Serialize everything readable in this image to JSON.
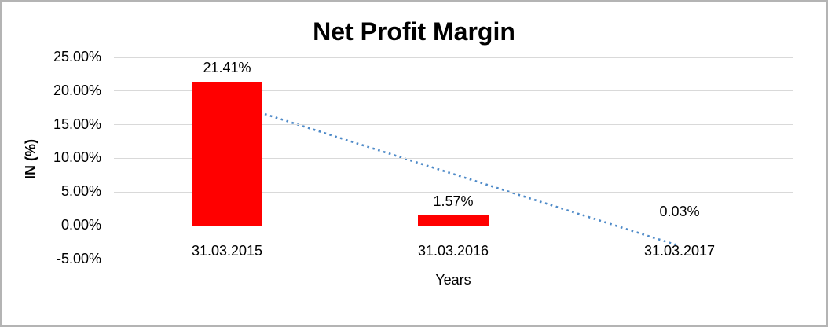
{
  "frame": {
    "background": "#FFFFFF",
    "border_color": "#B4B4B4"
  },
  "chart_data": {
    "type": "bar",
    "title": "Net Profit Margin",
    "xlabel": "Years",
    "ylabel": "IN (%)",
    "categories": [
      "31.03.2015",
      "31.03.2016",
      "31.03.2017"
    ],
    "values": [
      21.41,
      1.57,
      0.03
    ],
    "data_labels": [
      "21.41%",
      "1.57%",
      "0.03%"
    ],
    "bar_color": "#FF0000",
    "ylim": [
      -5,
      25
    ],
    "ytick_values": [
      25,
      20,
      15,
      10,
      5,
      0,
      -5
    ],
    "ytick_labels": [
      "25.00%",
      "20.00%",
      "15.00%",
      "10.00%",
      "5.00%",
      "0.00%",
      "-5.00%"
    ],
    "grid": true,
    "gridline_color": "#D9D9D9",
    "legend_position": "none",
    "trendline": {
      "type": "linear",
      "line_style": "dotted",
      "color": "#4E8AC8",
      "start_value": 18.36,
      "end_value": -3.02
    }
  }
}
